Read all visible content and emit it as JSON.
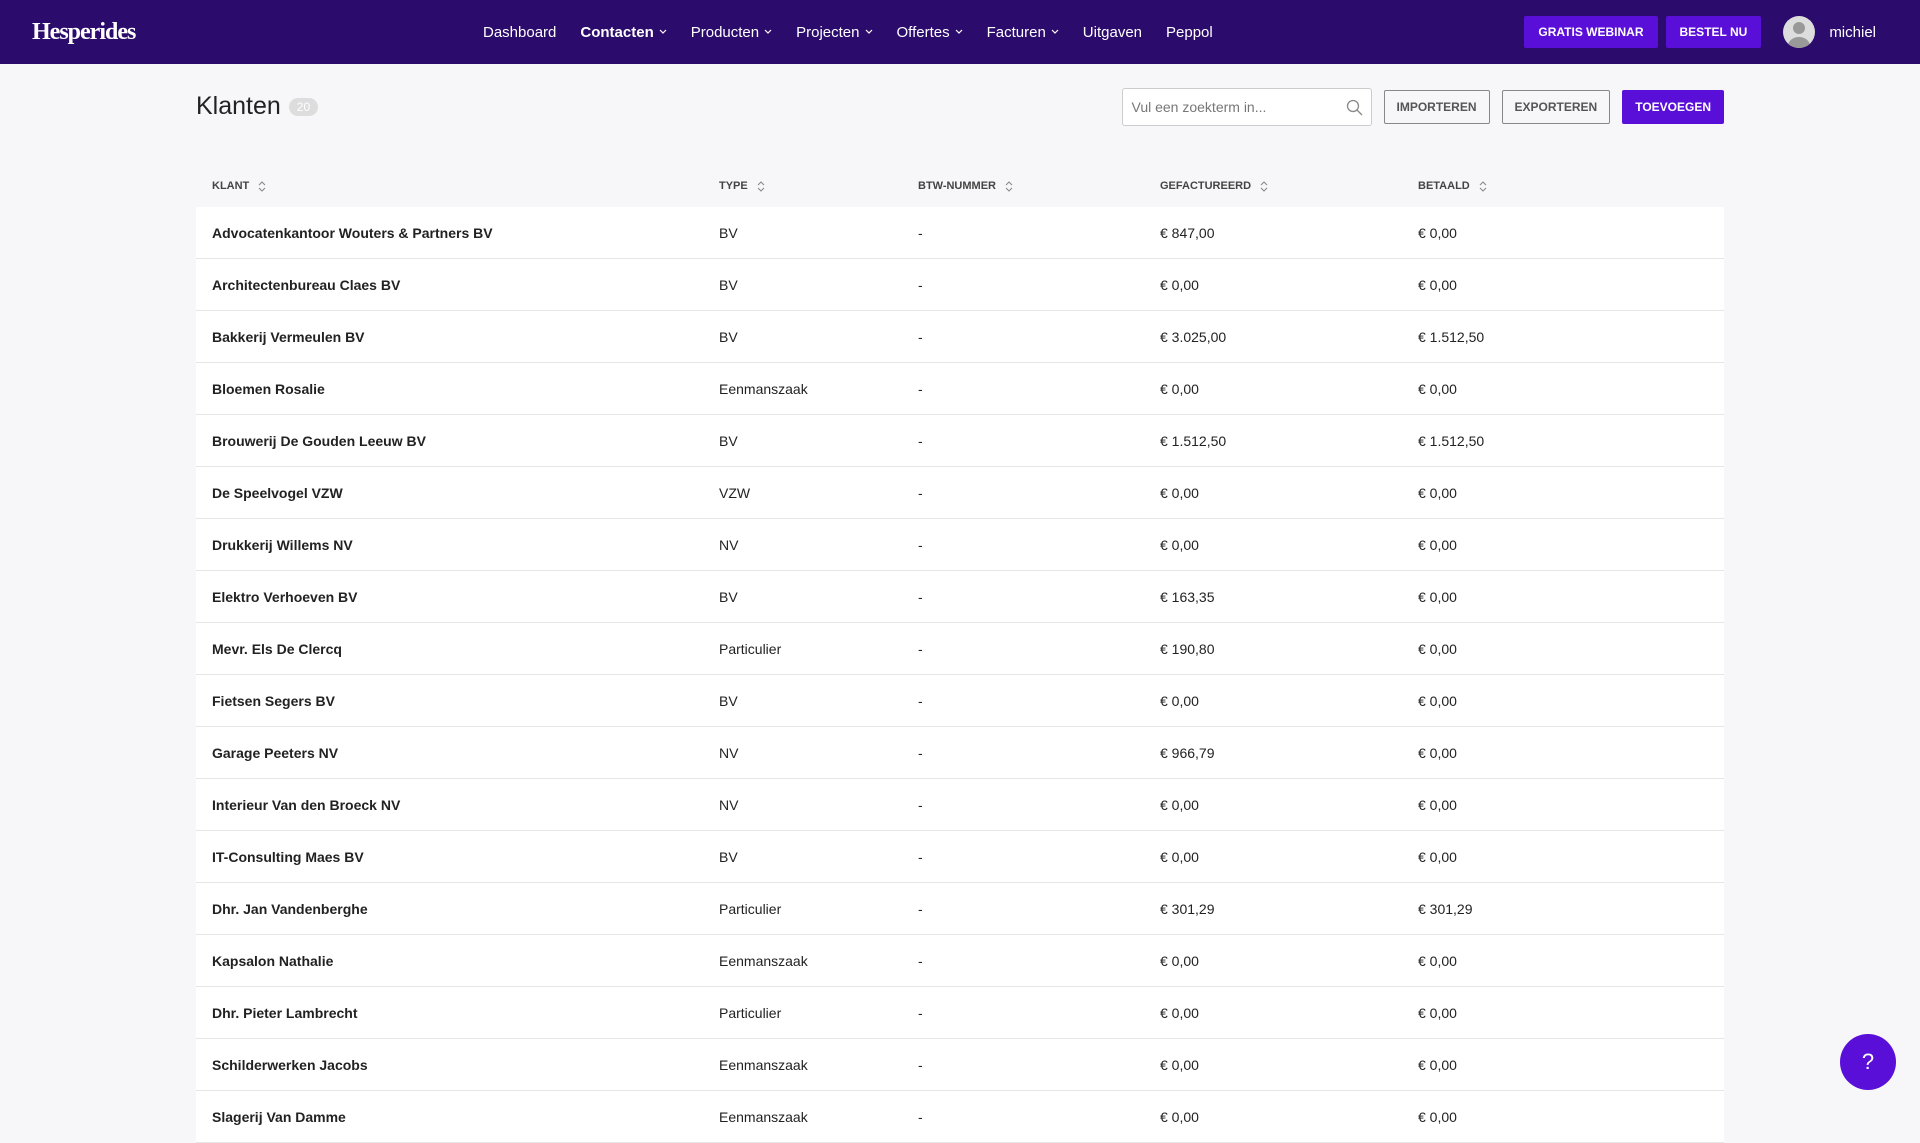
{
  "header": {
    "logo": "Hesperides",
    "nav": [
      {
        "label": "Dashboard",
        "dropdown": false
      },
      {
        "label": "Contacten",
        "dropdown": true,
        "active": true
      },
      {
        "label": "Producten",
        "dropdown": true
      },
      {
        "label": "Projecten",
        "dropdown": true
      },
      {
        "label": "Offertes",
        "dropdown": true
      },
      {
        "label": "Facturen",
        "dropdown": true
      },
      {
        "label": "Uitgaven",
        "dropdown": false
      },
      {
        "label": "Peppol",
        "dropdown": false
      }
    ],
    "buttons": [
      "GRATIS WEBINAR",
      "BESTEL NU"
    ],
    "user": "michiel"
  },
  "page": {
    "title": "Klanten",
    "count": "20",
    "search_placeholder": "Vul een zoekterm in...",
    "actions": [
      "IMPORTEREN",
      "EXPORTEREN",
      "TOEVOEGEN"
    ]
  },
  "table": {
    "columns": [
      "KLANT",
      "TYPE",
      "BTW-NUMMER",
      "GEFACTUREERD",
      "BETAALD"
    ],
    "rows": [
      [
        "Advocatenkantoor Wouters & Partners BV",
        "BV",
        "-",
        "€ 847,00",
        "€ 0,00"
      ],
      [
        "Architectenbureau Claes BV",
        "BV",
        "-",
        "€ 0,00",
        "€ 0,00"
      ],
      [
        "Bakkerij Vermeulen BV",
        "BV",
        "-",
        "€ 3.025,00",
        "€ 1.512,50"
      ],
      [
        "Bloemen Rosalie",
        "Eenmanszaak",
        "-",
        "€ 0,00",
        "€ 0,00"
      ],
      [
        "Brouwerij De Gouden Leeuw BV",
        "BV",
        "-",
        "€ 1.512,50",
        "€ 1.512,50"
      ],
      [
        "De Speelvogel VZW",
        "VZW",
        "-",
        "€ 0,00",
        "€ 0,00"
      ],
      [
        "Drukkerij Willems NV",
        "NV",
        "-",
        "€ 0,00",
        "€ 0,00"
      ],
      [
        "Elektro Verhoeven BV",
        "BV",
        "-",
        "€ 163,35",
        "€ 0,00"
      ],
      [
        "Mevr. Els De Clercq",
        "Particulier",
        "-",
        "€ 190,80",
        "€ 0,00"
      ],
      [
        "Fietsen Segers BV",
        "BV",
        "-",
        "€ 0,00",
        "€ 0,00"
      ],
      [
        "Garage Peeters NV",
        "NV",
        "-",
        "€ 966,79",
        "€ 0,00"
      ],
      [
        "Interieur Van den Broeck NV",
        "NV",
        "-",
        "€ 0,00",
        "€ 0,00"
      ],
      [
        "IT-Consulting Maes BV",
        "BV",
        "-",
        "€ 0,00",
        "€ 0,00"
      ],
      [
        "Dhr. Jan Vandenberghe",
        "Particulier",
        "-",
        "€ 301,29",
        "€ 301,29"
      ],
      [
        "Kapsalon Nathalie",
        "Eenmanszaak",
        "-",
        "€ 0,00",
        "€ 0,00"
      ],
      [
        "Dhr. Pieter Lambrecht",
        "Particulier",
        "-",
        "€ 0,00",
        "€ 0,00"
      ],
      [
        "Schilderwerken Jacobs",
        "Eenmanszaak",
        "-",
        "€ 0,00",
        "€ 0,00"
      ],
      [
        "Slagerij Van Damme",
        "Eenmanszaak",
        "-",
        "€ 0,00",
        "€ 0,00"
      ]
    ]
  },
  "help": "?"
}
